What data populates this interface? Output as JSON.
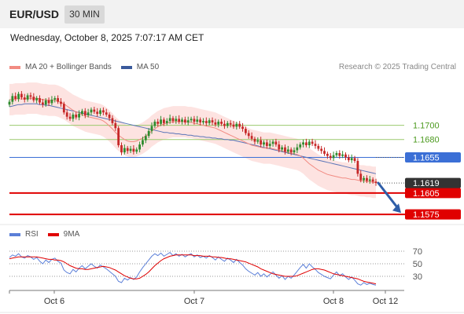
{
  "header": {
    "symbol": "EUR/USD",
    "timeframe": "30 MIN"
  },
  "datetime": "Wednesday, October 8, 2025 7:07:17 AM CET",
  "legend": {
    "ma20_label": "MA 20 + Bollinger Bands",
    "ma50_label": "MA 50",
    "credit": "Research © 2025 Trading Central"
  },
  "rsi_legend": {
    "rsi_label": "RSI",
    "ma9_label": "9MA"
  },
  "colors": {
    "bull_candle": "#2e8b2e",
    "bear_candle": "#c62828",
    "ma20": "#f28b82",
    "bollinger_fill": "#fde3e1",
    "ma50": "#5a74b8",
    "level_green": "#9bc96e",
    "level_blue": "#3b6fd6",
    "level_red": "#e00000",
    "current_price_bg": "#333333",
    "rsi_line": "#5b7fd8",
    "rsi_ma": "#e00000",
    "arrow": "#2f5ea8"
  },
  "chart_data": {
    "type": "candlestick",
    "price_axis": {
      "ylim": [
        1.1563,
        1.177
      ]
    },
    "levels": [
      {
        "value": 1.17,
        "label": "1.1700",
        "kind": "resistance-green"
      },
      {
        "value": 1.168,
        "label": "1.1680",
        "kind": "resistance-green"
      },
      {
        "value": 1.1655,
        "label": "1.1655",
        "kind": "pivot-blue"
      },
      {
        "value": 1.1605,
        "label": "1.1605",
        "kind": "support-red"
      },
      {
        "value": 1.1575,
        "label": "1.1575",
        "kind": "support-red"
      }
    ],
    "current_price": {
      "value": 1.1619,
      "label": "1.1619"
    },
    "projection": {
      "from": 1.1619,
      "to": 1.1577,
      "direction": "down"
    },
    "x_labels": [
      "Oct 6",
      "Oct 7",
      "Oct 8",
      "Oct 12"
    ],
    "candles_close": [
      1.1733,
      1.1741,
      1.1737,
      1.1744,
      1.1739,
      1.1736,
      1.1742,
      1.174,
      1.1735,
      1.1738,
      1.1732,
      1.1729,
      1.1735,
      1.1731,
      1.1736,
      1.1738,
      1.1733,
      1.173,
      1.1718,
      1.1712,
      1.1709,
      1.1715,
      1.1711,
      1.1716,
      1.172,
      1.1714,
      1.1718,
      1.1722,
      1.1719,
      1.1716,
      1.1721,
      1.1718,
      1.1715,
      1.171,
      1.1703,
      1.1696,
      1.1672,
      1.1662,
      1.1668,
      1.1664,
      1.1667,
      1.1663,
      1.1666,
      1.1673,
      1.1679,
      1.1685,
      1.1692,
      1.1699,
      1.1705,
      1.1702,
      1.1708,
      1.1703,
      1.1706,
      1.171,
      1.1706,
      1.1709,
      1.1705,
      1.1708,
      1.1704,
      1.1707,
      1.1709,
      1.1705,
      1.1708,
      1.1704,
      1.1706,
      1.1703,
      1.1707,
      1.1704,
      1.1701,
      1.1705,
      1.1702,
      1.1699,
      1.1703,
      1.1701,
      1.1698,
      1.1702,
      1.1698,
      1.1695,
      1.1689,
      1.1685,
      1.1681,
      1.1677,
      1.1679,
      1.1673,
      1.1676,
      1.1671,
      1.1674,
      1.1677,
      1.1673,
      1.1666,
      1.1669,
      1.1663,
      1.1666,
      1.1662,
      1.1665,
      1.1669,
      1.1673,
      1.1676,
      1.1672,
      1.1677,
      1.1674,
      1.1671,
      1.1667,
      1.1664,
      1.166,
      1.1657,
      1.1654,
      1.1658,
      1.1661,
      1.1657,
      1.1659,
      1.1655,
      1.1651,
      1.1654,
      1.165,
      1.1632,
      1.1623,
      1.1626,
      1.1622,
      1.1624,
      1.1621,
      1.1619
    ],
    "ma20": [
      1.1736,
      1.1736,
      1.1737,
      1.1737,
      1.1737,
      1.1737,
      1.1738,
      1.1738,
      1.1738,
      1.1738,
      1.1737,
      1.1736,
      1.1736,
      1.1735,
      1.1735,
      1.1735,
      1.1734,
      1.1732,
      1.173,
      1.1727,
      1.1724,
      1.1721,
      1.1719,
      1.1717,
      1.1715,
      1.1713,
      1.1712,
      1.1711,
      1.171,
      1.1709,
      1.1708,
      1.1706,
      1.1703,
      1.1699,
      1.1695,
      1.169,
      1.1686,
      1.1683,
      1.168,
      1.1678,
      1.1677,
      1.1677,
      1.1678,
      1.168,
      1.1682,
      1.1685,
      1.1688,
      1.1692,
      1.1695,
      1.1698,
      1.17,
      1.1702,
      1.1703,
      1.1704,
      1.1705,
      1.1705,
      1.1705,
      1.1705,
      1.1705,
      1.1704,
      1.1704,
      1.1703,
      1.1702,
      1.1701,
      1.17,
      1.1699,
      1.1698,
      1.1697,
      1.1696,
      1.1694,
      1.1692,
      1.169,
      1.1688,
      1.1686,
      1.1684,
      1.1682,
      1.168,
      1.1678,
      1.1676,
      1.1674,
      1.1672,
      1.1671,
      1.167,
      1.1669,
      1.1668,
      1.1668,
      1.1668,
      1.1667,
      1.1666,
      1.1665,
      1.1664,
      1.1663,
      1.1662,
      1.1661,
      1.166,
      1.1659,
      1.1657,
      1.1654,
      1.165,
      1.1646,
      1.1643,
      1.164,
      1.1637,
      1.1635,
      1.1633,
      1.1631,
      1.163,
      1.1629,
      1.1628,
      1.1627,
      1.1626,
      1.1626,
      1.1625,
      1.1624,
      1.1624,
      1.1623,
      1.1622,
      1.1622,
      1.1621,
      1.1621,
      1.162,
      1.162
    ],
    "ma50": [
      1.1726,
      1.1727,
      1.1728,
      1.1729,
      1.1729,
      1.173,
      1.173,
      1.173,
      1.173,
      1.173,
      1.1729,
      1.1729,
      1.1728,
      1.1728,
      1.1727,
      1.1726,
      1.1725,
      1.1724,
      1.1723,
      1.1722,
      1.1721,
      1.172,
      1.1719,
      1.1718,
      1.1717,
      1.1716,
      1.1715,
      1.1714,
      1.1713,
      1.1712,
      1.1711,
      1.171,
      1.1709,
      1.1708,
      1.1707,
      1.1706,
      1.1705,
      1.1704,
      1.1703,
      1.1702,
      1.1701,
      1.17,
      1.1699,
      1.1698,
      1.1697,
      1.1696,
      1.1695,
      1.1694,
      1.1693,
      1.1692,
      1.1691,
      1.169,
      1.169,
      1.1689,
      1.1689,
      1.1688,
      1.1688,
      1.1687,
      1.1687,
      1.1686,
      1.1686,
      1.1685,
      1.1685,
      1.1684,
      1.1684,
      1.1683,
      1.1683,
      1.1682,
      1.1682,
      1.1681,
      1.1681,
      1.168,
      1.168,
      1.1679,
      1.1679,
      1.1678,
      1.1677,
      1.1676,
      1.1675,
      1.1674,
      1.1673,
      1.1672,
      1.1671,
      1.167,
      1.1669,
      1.1668,
      1.1667,
      1.1666,
      1.1665,
      1.1664,
      1.1663,
      1.1662,
      1.1661,
      1.166,
      1.1659,
      1.1658,
      1.1657,
      1.1656,
      1.1655,
      1.1654,
      1.1653,
      1.1652,
      1.1651,
      1.165,
      1.1649,
      1.1648,
      1.1647,
      1.1646,
      1.1645,
      1.1644,
      1.1643,
      1.1642,
      1.1641,
      1.164,
      1.1639,
      1.1638,
      1.1637,
      1.1636,
      1.1635,
      1.1634,
      1.1633,
      1.1632
    ],
    "bollinger_width": 0.0022,
    "rsi_axis": {
      "ylim": [
        10,
        80
      ],
      "ticks": [
        70,
        50,
        30
      ]
    },
    "rsi": [
      60,
      64,
      62,
      66,
      61,
      59,
      63,
      61,
      57,
      60,
      54,
      50,
      56,
      52,
      57,
      59,
      54,
      51,
      40,
      36,
      34,
      41,
      37,
      43,
      47,
      42,
      46,
      50,
      46,
      43,
      48,
      45,
      42,
      38,
      34,
      30,
      22,
      20,
      27,
      24,
      28,
      25,
      29,
      37,
      44,
      50,
      56,
      62,
      66,
      63,
      67,
      62,
      65,
      68,
      63,
      66,
      62,
      65,
      61,
      64,
      66,
      61,
      64,
      60,
      62,
      59,
      63,
      60,
      56,
      61,
      57,
      54,
      59,
      56,
      52,
      57,
      52,
      48,
      42,
      38,
      35,
      32,
      36,
      30,
      34,
      29,
      33,
      37,
      32,
      27,
      31,
      25,
      30,
      27,
      32,
      38,
      44,
      49,
      43,
      50,
      45,
      41,
      36,
      33,
      30,
      28,
      26,
      32,
      37,
      31,
      34,
      29,
      25,
      29,
      24,
      18,
      16,
      20,
      17,
      19,
      17,
      16
    ],
    "rsi_ma": [
      58,
      59,
      60,
      61,
      61,
      61,
      61,
      61,
      61,
      61,
      60,
      59,
      58,
      57,
      57,
      56,
      56,
      55,
      53,
      50,
      47,
      45,
      43,
      42,
      42,
      41,
      41,
      42,
      43,
      44,
      45,
      46,
      45,
      44,
      42,
      40,
      37,
      34,
      31,
      29,
      27,
      26,
      26,
      27,
      30,
      33,
      37,
      42,
      47,
      51,
      55,
      58,
      60,
      62,
      63,
      64,
      64,
      64,
      64,
      64,
      64,
      63,
      63,
      63,
      62,
      62,
      62,
      61,
      61,
      60,
      60,
      59,
      58,
      58,
      57,
      56,
      55,
      54,
      53,
      51,
      49,
      47,
      45,
      42,
      40,
      38,
      36,
      34,
      33,
      32,
      31,
      30,
      30,
      30,
      30,
      31,
      33,
      35,
      37,
      39,
      41,
      42,
      42,
      41,
      40,
      38,
      36,
      34,
      33,
      32,
      31,
      30,
      29,
      28,
      27,
      26,
      24,
      22,
      21,
      20,
      19,
      18
    ]
  }
}
